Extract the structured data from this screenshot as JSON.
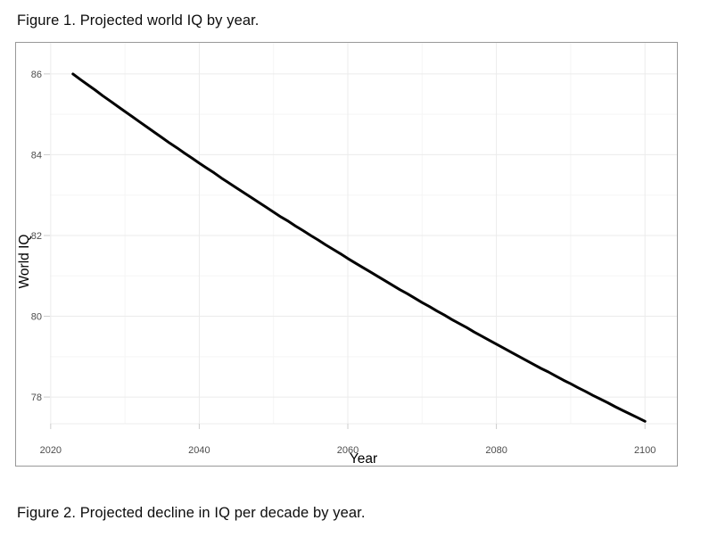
{
  "page": {
    "background": "#ffffff",
    "figure1_caption": "Figure 1. Projected world IQ by year.",
    "figure2_caption": "Figure 2. Projected decline in IQ per decade by year."
  },
  "chart_style": {
    "panel_border_color": "#999999",
    "grid_major_color": "#ebebeb",
    "grid_minor_color": "#f5f5f5",
    "grid_bottom_edge_color": "#ededed",
    "tick_mark_color": "#cccccc",
    "tick_label_color": "#4d4d4d",
    "axis_title_color": "#000000",
    "line_color": "#000000",
    "line_width": 3
  },
  "chart_data": {
    "type": "line",
    "title": "Figure 1. Projected world IQ by year.",
    "xlabel": "Year",
    "ylabel": "World IQ",
    "xlim": [
      2019.9,
      2104.3
    ],
    "ylim": [
      77.34,
      86.77
    ],
    "x_ticks": [
      2020,
      2040,
      2060,
      2080,
      2100
    ],
    "x_minor_ticks": [
      2030,
      2050,
      2070,
      2090
    ],
    "y_ticks": [
      86,
      84,
      82,
      80,
      78
    ],
    "y_minor_ticks": [
      85,
      83,
      81,
      79
    ],
    "grid": true,
    "legend": false,
    "x": [
      2023,
      2024,
      2025,
      2026,
      2027,
      2028,
      2029,
      2030,
      2031,
      2032,
      2033,
      2034,
      2035,
      2036,
      2037,
      2038,
      2039,
      2040,
      2041,
      2042,
      2043,
      2044,
      2045,
      2046,
      2047,
      2048,
      2049,
      2050,
      2051,
      2052,
      2053,
      2054,
      2055,
      2056,
      2057,
      2058,
      2059,
      2060,
      2061,
      2062,
      2063,
      2064,
      2065,
      2066,
      2067,
      2068,
      2069,
      2070,
      2071,
      2072,
      2073,
      2074,
      2075,
      2076,
      2077,
      2078,
      2079,
      2080,
      2081,
      2082,
      2083,
      2084,
      2085,
      2086,
      2087,
      2088,
      2089,
      2090,
      2091,
      2092,
      2093,
      2094,
      2095,
      2096,
      2097,
      2098,
      2099,
      2100
    ],
    "series": [
      {
        "name": "Projected world IQ",
        "values": [
          86.0,
          85.86,
          85.73,
          85.6,
          85.46,
          85.33,
          85.2,
          85.07,
          84.94,
          84.81,
          84.68,
          84.55,
          84.42,
          84.29,
          84.17,
          84.04,
          83.92,
          83.79,
          83.67,
          83.55,
          83.42,
          83.3,
          83.18,
          83.06,
          82.94,
          82.82,
          82.7,
          82.58,
          82.46,
          82.35,
          82.23,
          82.12,
          82.0,
          81.89,
          81.77,
          81.66,
          81.55,
          81.43,
          81.32,
          81.21,
          81.1,
          80.99,
          80.88,
          80.77,
          80.66,
          80.56,
          80.45,
          80.34,
          80.24,
          80.13,
          80.03,
          79.92,
          79.82,
          79.72,
          79.61,
          79.51,
          79.41,
          79.31,
          79.21,
          79.11,
          79.01,
          78.91,
          78.81,
          78.71,
          78.62,
          78.52,
          78.42,
          78.33,
          78.23,
          78.14,
          78.04,
          77.95,
          77.86,
          77.76,
          77.67,
          77.58,
          77.49,
          77.4
        ]
      }
    ]
  }
}
